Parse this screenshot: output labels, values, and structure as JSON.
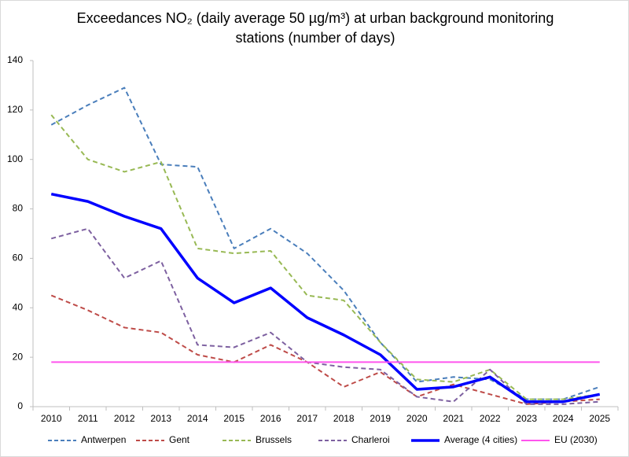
{
  "chart_data": {
    "type": "line",
    "title": "Exceedances NO₂ (daily average 50 µg/m³) at urban background monitoring stations (number of days)",
    "categories": [
      "2010",
      "2011",
      "2012",
      "2013",
      "2014",
      "2015",
      "2016",
      "2017",
      "2018",
      "2019",
      "2020",
      "2021",
      "2022",
      "2023",
      "2024",
      "2025"
    ],
    "ylim": [
      0,
      140
    ],
    "yticks": [
      0,
      20,
      40,
      60,
      80,
      100,
      120,
      140
    ],
    "grid": false,
    "legend": "bottom",
    "series": [
      {
        "name": "Antwerpen",
        "color": "#4a7ebb",
        "dashed": true,
        "values": [
          114,
          122,
          129,
          98,
          97,
          64,
          72,
          62,
          47,
          26,
          10,
          12,
          11,
          3,
          3,
          8
        ]
      },
      {
        "name": "Gent",
        "color": "#be4b48",
        "dashed": true,
        "values": [
          45,
          39,
          32,
          30,
          21,
          18,
          25,
          18,
          8,
          14,
          4,
          9,
          5,
          1,
          2,
          3
        ]
      },
      {
        "name": "Brussels",
        "color": "#98b954",
        "dashed": true,
        "values": [
          118,
          100,
          95,
          99,
          64,
          62,
          63,
          45,
          43,
          26,
          11,
          10,
          15,
          3,
          3,
          5
        ]
      },
      {
        "name": "Charleroi",
        "color": "#7d60a0",
        "dashed": true,
        "values": [
          68,
          72,
          52,
          59,
          25,
          24,
          30,
          18,
          16,
          15,
          4,
          2,
          15,
          1,
          1,
          2
        ]
      },
      {
        "name": "Average (4 cities)",
        "color": "#0000ff",
        "dashed": false,
        "width": 3.5,
        "values": [
          86,
          83,
          77,
          72,
          52,
          42,
          48,
          36,
          29,
          21,
          7,
          8,
          12,
          2,
          2,
          5
        ]
      },
      {
        "name": "EU (2030)",
        "color": "#ff55ee",
        "dashed": false,
        "values": [
          18,
          18,
          18,
          18,
          18,
          18,
          18,
          18,
          18,
          18,
          18,
          18,
          18,
          18,
          18,
          18
        ]
      }
    ]
  }
}
